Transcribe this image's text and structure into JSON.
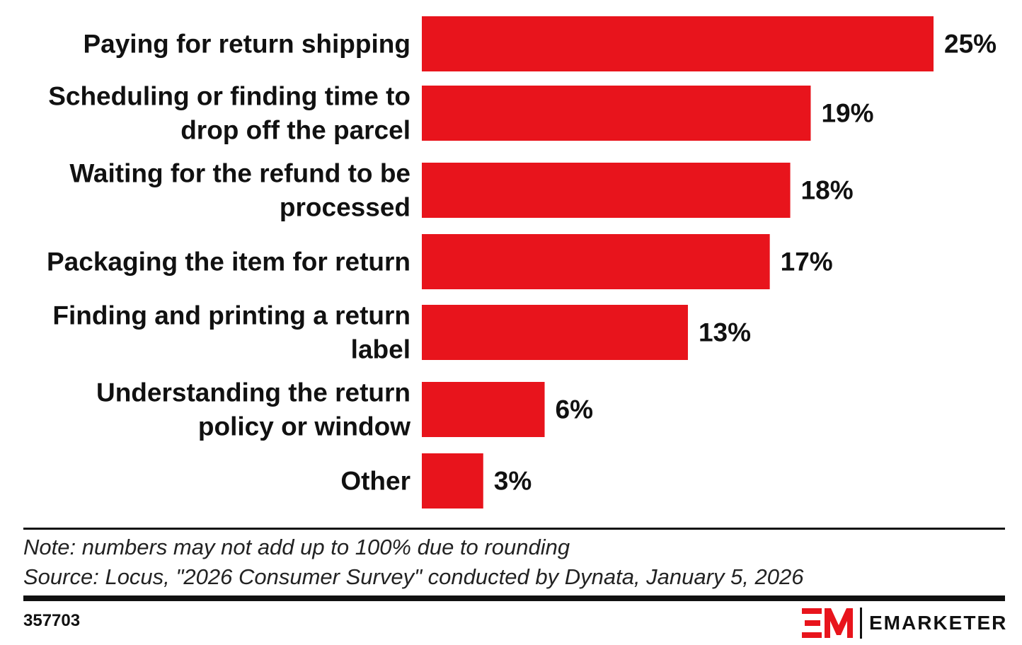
{
  "chart_data": {
    "type": "bar",
    "orientation": "horizontal",
    "categories": [
      [
        "Paying for return shipping"
      ],
      [
        "Scheduling or finding time to",
        "drop off the parcel"
      ],
      [
        "Waiting for the refund to be",
        "processed"
      ],
      [
        "Packaging the item for return"
      ],
      [
        "Finding and printing a return",
        "label"
      ],
      [
        "Understanding the return",
        "policy or window"
      ],
      [
        "Other"
      ]
    ],
    "values": [
      25,
      19,
      18,
      17,
      13,
      6,
      3
    ],
    "value_labels": [
      "25%",
      "19%",
      "18%",
      "17%",
      "13%",
      "6%",
      "3%"
    ],
    "unit": "%",
    "xlim": [
      0,
      25
    ],
    "bar_color": "#e8141c",
    "grid": false,
    "legend": "none"
  },
  "footer": {
    "note": "Note: numbers may not add up to 100% due to rounding",
    "source": "Source: Locus, \"2026 Consumer Survey\" conducted by Dynata, January 5, 2026",
    "chart_id": "357703",
    "brand": "EMARKETER",
    "brand_color": "#e8141c"
  }
}
